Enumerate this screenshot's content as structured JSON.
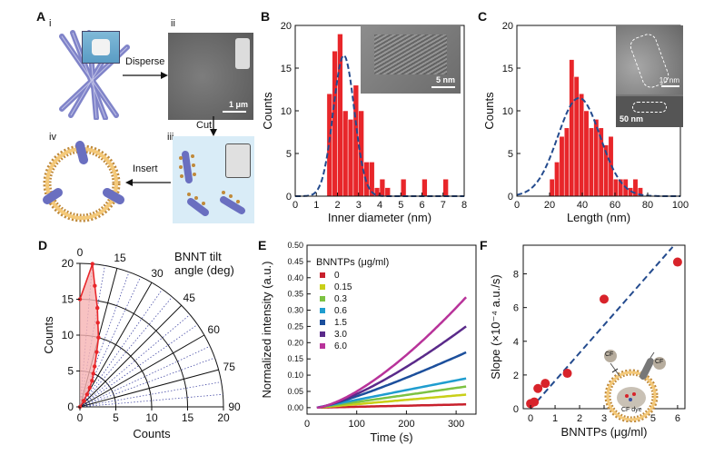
{
  "panels": {
    "A": {
      "letter": "A",
      "sub_i": "i",
      "sub_ii": "ii",
      "sub_iii": "iii",
      "sub_iv": "iv",
      "disperse": "Disperse",
      "cut": "Cut",
      "insert": "Insert",
      "scale_bar": "1 μm"
    },
    "B": {
      "letter": "B",
      "inset_scale": "5 nm"
    },
    "C": {
      "letter": "C",
      "inset_scale_a": "10 nm",
      "inset_scale_b": "50 nm"
    },
    "D": {
      "letter": "D",
      "title_1": "BNNT tilt",
      "title_2": "angle (deg)"
    },
    "E": {
      "letter": "E"
    },
    "F": {
      "letter": "F",
      "cf_1": "CF",
      "cf_2": "CF",
      "dye": "CF dye"
    }
  },
  "chart_data": [
    {
      "id": "B",
      "type": "bar",
      "xlabel": "Inner diameter (nm)",
      "ylabel": "Counts",
      "xlim": [
        0,
        8
      ],
      "ylim": [
        0,
        20
      ],
      "xticks": [
        "0",
        "1",
        "2",
        "3",
        "4",
        "5",
        "6",
        "7",
        "8"
      ],
      "yticks": [
        "0",
        "5",
        "10",
        "15",
        "20"
      ],
      "bin_width": 0.25,
      "x": [
        1.625,
        1.875,
        2.125,
        2.375,
        2.625,
        2.875,
        3.125,
        3.375,
        3.625,
        3.875,
        4.125,
        4.375,
        5.125,
        6.125,
        7.125
      ],
      "values": [
        12,
        17,
        19,
        10,
        9,
        13,
        10,
        4,
        4,
        1,
        2,
        1,
        2,
        2,
        2
      ],
      "fit": {
        "type": "gaussian",
        "mean": 2.3,
        "sigma": 0.5,
        "peak": 16.5
      },
      "colors": {
        "bar": "#e8262a",
        "fit": "#244b8e"
      }
    },
    {
      "id": "C",
      "type": "bar",
      "xlabel": "Length (nm)",
      "ylabel": "Counts",
      "xlim": [
        0,
        100
      ],
      "ylim": [
        0,
        20
      ],
      "xticks": [
        "0",
        "20",
        "40",
        "60",
        "80",
        "100"
      ],
      "yticks": [
        "0",
        "5",
        "10",
        "15",
        "20"
      ],
      "bin_width": 3,
      "x": [
        21.5,
        24.5,
        27.5,
        30.5,
        33.5,
        36.5,
        39.5,
        42.5,
        45.5,
        48.5,
        51.5,
        54.5,
        57.5,
        60.5,
        63.5,
        66.5,
        69.5,
        72.5,
        75.5
      ],
      "values": [
        2,
        4,
        7,
        8,
        16,
        14,
        12,
        10,
        8,
        9,
        8,
        6,
        7,
        2,
        2,
        2,
        1,
        2,
        1
      ],
      "fit": {
        "type": "gaussian",
        "mean": 38,
        "sigma": 13,
        "peak": 11.5
      },
      "colors": {
        "bar": "#e8262a",
        "fit": "#244b8e"
      }
    },
    {
      "id": "D",
      "type": "scatter",
      "polar": true,
      "xlabel": "Counts",
      "ylabel": "Counts",
      "rlim": [
        0,
        20
      ],
      "xticks": [
        "0",
        "5",
        "10",
        "15",
        "20"
      ],
      "yticks": [
        "0",
        "5",
        "10",
        "15",
        "20"
      ],
      "angle_ticks": [
        "0",
        "15",
        "30",
        "45",
        "60",
        "75",
        "90"
      ],
      "angle_deg": [
        0,
        5,
        7,
        10,
        12,
        15,
        17,
        20,
        22,
        25,
        27,
        30,
        32,
        35,
        40
      ],
      "counts": [
        15,
        20,
        17,
        14,
        12,
        10,
        8,
        6,
        5,
        4,
        3,
        2,
        1,
        1,
        0
      ],
      "colors": {
        "line": "#e8262a",
        "fill": "#f6b3b3",
        "grid": "#4a4fa8"
      }
    },
    {
      "id": "E",
      "type": "line",
      "xlabel": "Time (s)",
      "ylabel": "Normalized intensity (a.u.)",
      "xlim": [
        0,
        340
      ],
      "ylim": [
        -0.02,
        0.5
      ],
      "xticks": [
        "0",
        "100",
        "200",
        "300"
      ],
      "yticks": [
        "0.00",
        "0.05",
        "0.10",
        "0.15",
        "0.20",
        "0.25",
        "0.30",
        "0.35",
        "0.40",
        "0.45",
        "0.50"
      ],
      "legend_title": "BNNTPs (μg/ml)",
      "legend_position": "top-left",
      "series": [
        {
          "name": "0",
          "color": "#c8202c",
          "end": 0.01,
          "curve": 1.0
        },
        {
          "name": "0.15",
          "color": "#c9cf18",
          "end": 0.04,
          "curve": 1.0
        },
        {
          "name": "0.3",
          "color": "#7cc242",
          "end": 0.065,
          "curve": 1.0
        },
        {
          "name": "0.6",
          "color": "#1f9dcf",
          "end": 0.09,
          "curve": 1.0
        },
        {
          "name": "1.5",
          "color": "#1c4f9c",
          "end": 0.17,
          "curve": 1.2
        },
        {
          "name": "3.0",
          "color": "#5a2a8a",
          "end": 0.25,
          "curve": 1.35
        },
        {
          "name": "6.0",
          "color": "#b8339a",
          "end": 0.34,
          "curve": 1.45
        }
      ],
      "x_start": 20,
      "x_end": 320
    },
    {
      "id": "F",
      "type": "scatter",
      "xlabel": "BNNTPs (μg/ml)",
      "ylabel": "Slope (×10⁻⁴ a.u./s)",
      "xlim": [
        -0.3,
        6.3
      ],
      "ylim": [
        0,
        9.7
      ],
      "xticks": [
        "0",
        "1",
        "2",
        "3",
        "4",
        "5",
        "6"
      ],
      "yticks": [
        "0",
        "2",
        "4",
        "6",
        "8"
      ],
      "x": [
        0,
        0.15,
        0.3,
        0.6,
        1.5,
        3.0,
        6.0
      ],
      "y": [
        0.3,
        0.4,
        1.2,
        1.5,
        2.1,
        6.5,
        8.7
      ],
      "fit": {
        "x": [
          0,
          5.8
        ],
        "y": [
          0.0,
          9.6
        ]
      },
      "colors": {
        "point": "#d8232a",
        "fit": "#244b8e"
      }
    }
  ]
}
